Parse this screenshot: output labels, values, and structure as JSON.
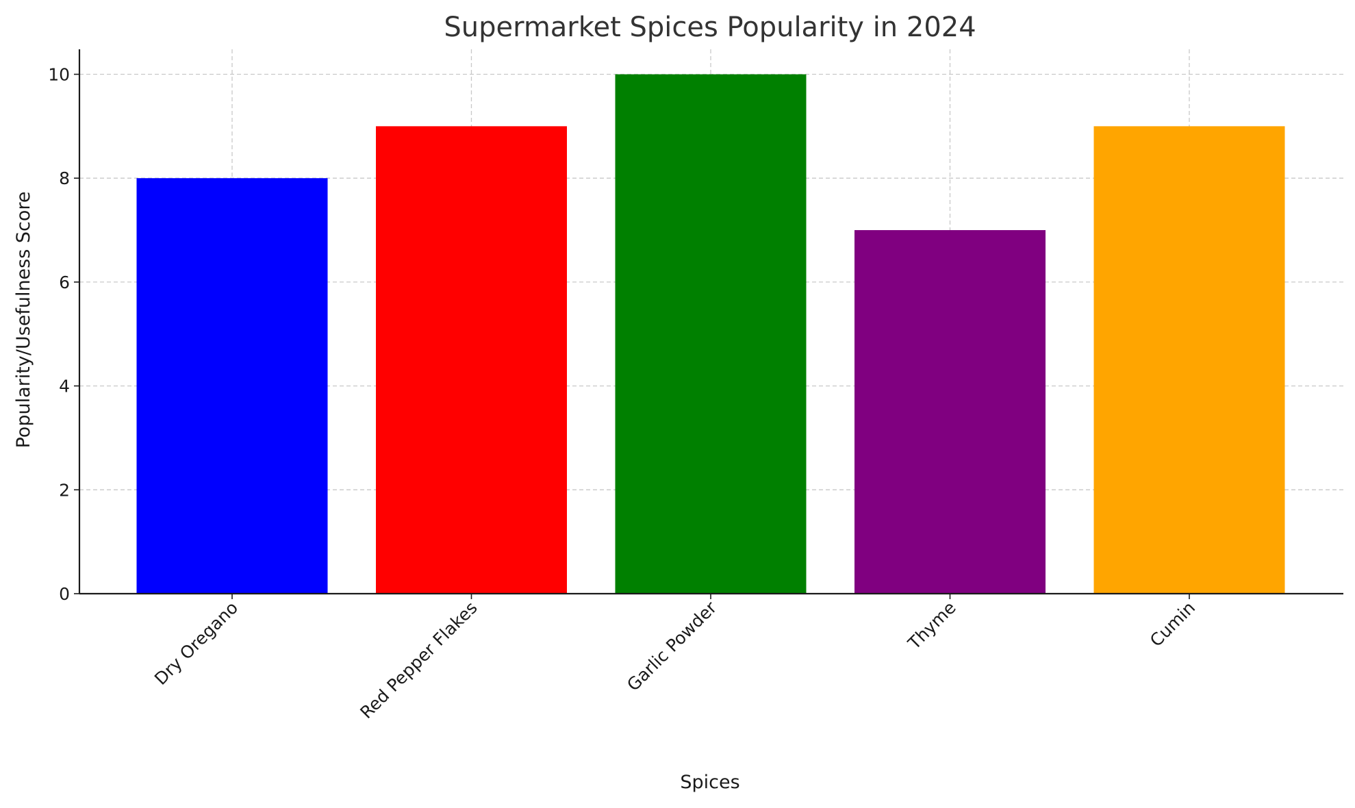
{
  "chart_data": {
    "type": "bar",
    "title": "Supermarket Spices Popularity in 2024",
    "xlabel": "Spices",
    "ylabel": "Popularity/Usefulness Score",
    "categories": [
      "Dry Oregano",
      "Red Pepper Flakes",
      "Garlic Powder",
      "Thyme",
      "Cumin"
    ],
    "values": [
      8,
      9,
      10,
      7,
      9
    ],
    "colors": [
      "#0000ff",
      "#ff0000",
      "#008000",
      "#800080",
      "#ffa500"
    ],
    "ylim": [
      0,
      10.5
    ],
    "yticks": [
      "0",
      "2",
      "4",
      "6",
      "8",
      "10"
    ],
    "grid": true,
    "legend": "none"
  }
}
